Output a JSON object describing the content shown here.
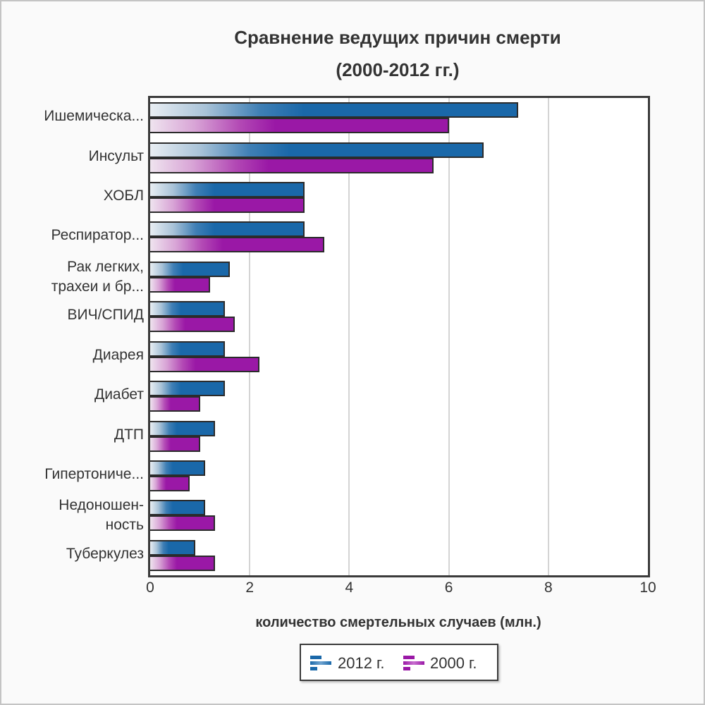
{
  "chart_data": {
    "type": "bar",
    "orientation": "horizontal",
    "title": "Сравнение ведущих причин смерти (2000-2012 гг.)",
    "title_lines": [
      "Сравнение ведущих причин смерти",
      "(2000-2012 гг.)"
    ],
    "xlabel": "количество смертельных случаев (млн.)",
    "ylabel": "",
    "xlim": [
      0,
      10
    ],
    "xticks": [
      "0",
      "2",
      "4",
      "6",
      "8",
      "10"
    ],
    "grid": true,
    "legend_position": "bottom",
    "categories": [
      "Ишемическа...",
      "Инсульт",
      "ХОБЛ",
      "Респиратор...",
      "Рак легких, трахеи и бр...",
      "ВИЧ/СПИД",
      "Диарея",
      "Диабет",
      "ДТП",
      "Гипертониче...",
      "Недоношенность",
      "Туберкулез"
    ],
    "category_label_lines": [
      [
        "Ишемическа..."
      ],
      [
        "Инсульт"
      ],
      [
        "ХОБЛ"
      ],
      [
        "Респиратор..."
      ],
      [
        "Рак легких,",
        "трахеи и бр..."
      ],
      [
        "ВИЧ/СПИД"
      ],
      [
        "Диарея"
      ],
      [
        "Диабет"
      ],
      [
        "ДТП"
      ],
      [
        "Гипертониче..."
      ],
      [
        "Недоношен-",
        "ность"
      ],
      [
        "Туберкулез"
      ]
    ],
    "series": [
      {
        "name": "2012 г.",
        "color": "#1a68a9",
        "values": [
          7.4,
          6.7,
          3.1,
          3.1,
          1.6,
          1.5,
          1.5,
          1.5,
          1.3,
          1.1,
          1.1,
          0.9
        ]
      },
      {
        "name": "2000 г.",
        "color": "#9a18a6",
        "values": [
          6.0,
          5.7,
          3.1,
          3.5,
          1.2,
          1.7,
          2.2,
          1.0,
          1.0,
          0.8,
          1.3,
          1.3
        ]
      }
    ]
  },
  "legend": {
    "items": [
      "2012 г.",
      "2000 г."
    ]
  }
}
